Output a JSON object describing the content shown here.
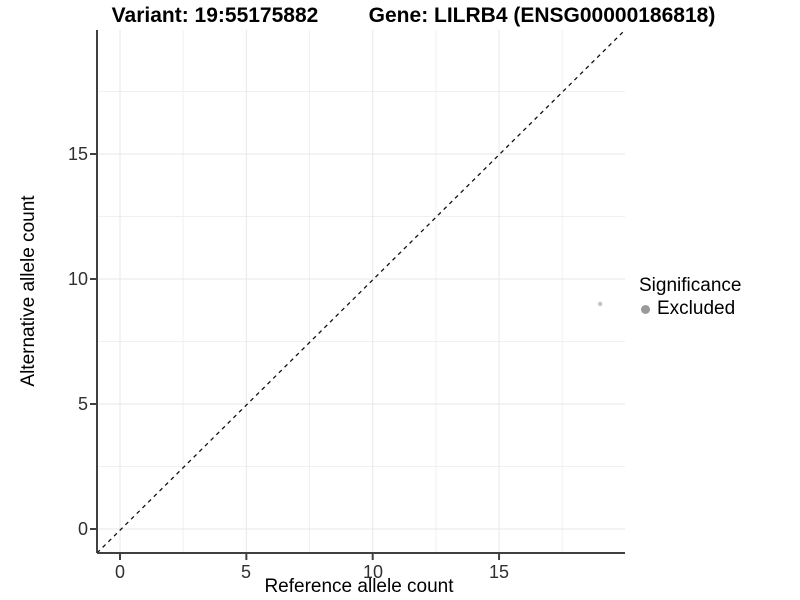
{
  "titles": {
    "variant": "Variant: 19:55175882",
    "gene": "Gene: LILRB4 (ENSG00000186818)"
  },
  "axes": {
    "x": {
      "label": "Reference allele count",
      "ticks": [
        "0",
        "5",
        "10",
        "15"
      ]
    },
    "y": {
      "label": "Alternative allele count",
      "ticks": [
        "0",
        "5",
        "10",
        "15"
      ]
    }
  },
  "legend": {
    "title": "Significance",
    "items": [
      {
        "label": "Excluded",
        "color": "#999999"
      }
    ]
  },
  "colors": {
    "point": "#c4c4c4",
    "axis_line": "#404040",
    "grid_major": "#e7e7e7",
    "grid_minor": "#f0f0f0",
    "dashed_line": "#111111"
  },
  "chart_data": {
    "type": "scatter",
    "title": "Variant: 19:55175882   Gene: LILRB4 (ENSG00000186818)",
    "xlabel": "Reference allele count",
    "ylabel": "Alternative allele count",
    "xlim": [
      -1,
      20
    ],
    "ylim": [
      -1,
      20
    ],
    "x_ticks": [
      0,
      5,
      10,
      15
    ],
    "y_ticks": [
      0,
      5,
      10,
      15
    ],
    "minor_ticks": [
      2.5,
      7.5,
      12.5,
      17.5
    ],
    "grid": true,
    "points": [
      {
        "x": 19,
        "y": 9,
        "series": "Excluded",
        "color": "#c4c4c4",
        "size": 2.2
      }
    ],
    "reference_line": {
      "type": "identity",
      "style": "dashed",
      "color": "#111111"
    },
    "legend": {
      "title": "Significance",
      "position": "right",
      "entries": [
        "Excluded"
      ]
    }
  }
}
